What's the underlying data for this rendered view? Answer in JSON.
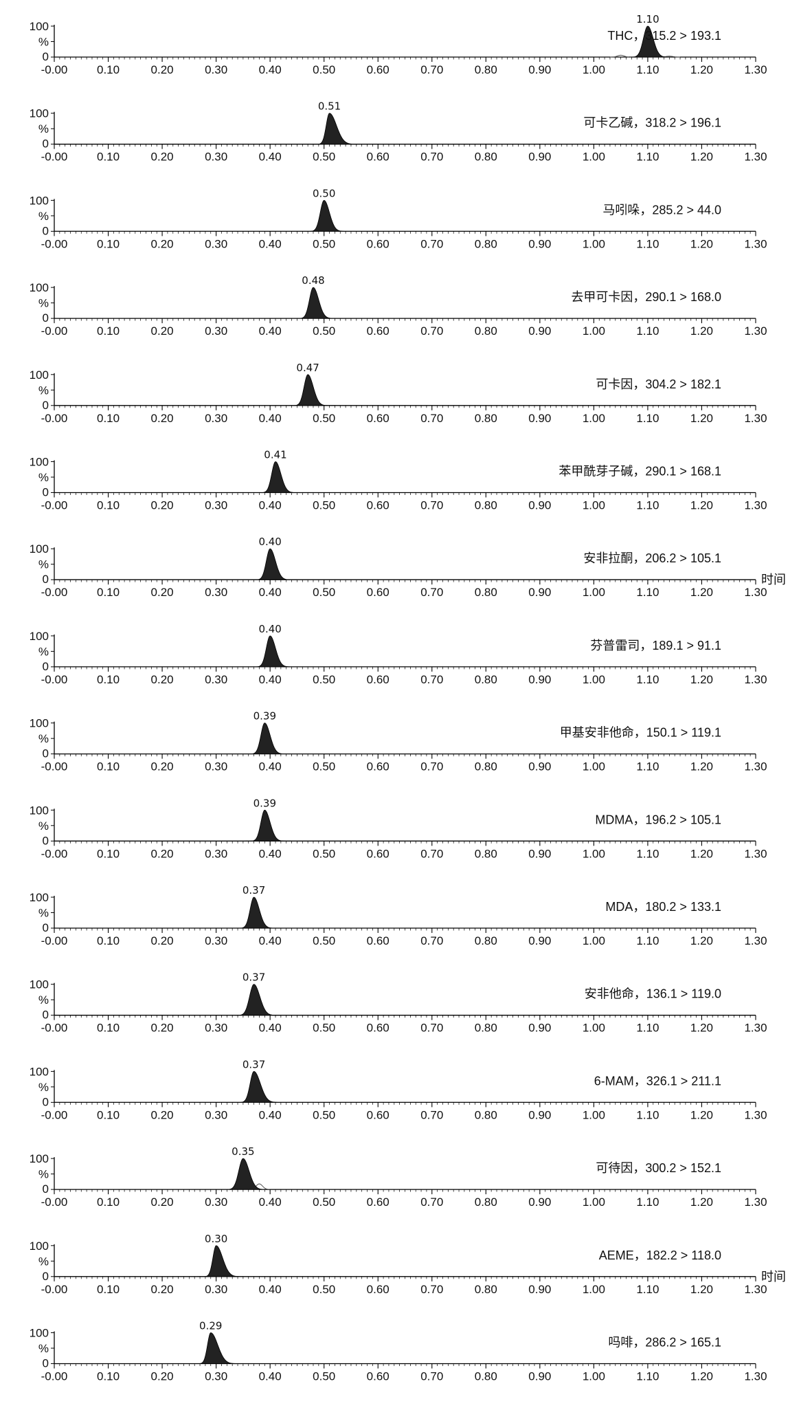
{
  "chart_data": {
    "type": "area",
    "x_range": [
      0,
      1.3
    ],
    "y_range": [
      0,
      100
    ],
    "x_tick_labels": [
      "-0.00",
      "0.10",
      "0.20",
      "0.30",
      "0.40",
      "0.50",
      "0.60",
      "0.70",
      "0.80",
      "0.90",
      "1.00",
      "1.10",
      "1.20",
      "1.30"
    ],
    "y_tick_labels": [
      "100",
      "0"
    ],
    "y_axis_label": "%",
    "x_axis_name": "时间",
    "x_axis_name_shown_on": [
      7,
      15
    ],
    "peak_color": "#222222",
    "series": [
      {
        "name": "THC，315.2 > 193.1",
        "peak_rt": 1.1,
        "peak_label": "1.10",
        "width": 0.008,
        "tail": 0.002,
        "secondary": [
          {
            "rt": 1.05,
            "height": 6
          },
          {
            "rt": 1.14,
            "height": 3
          }
        ]
      },
      {
        "name": "可卡乙碱，318.2 > 196.1",
        "peak_rt": 0.51,
        "peak_label": "0.51",
        "width": 0.006,
        "tail": 0.007,
        "secondary": []
      },
      {
        "name": "马吲哚，285.2 > 44.0",
        "peak_rt": 0.5,
        "peak_label": "0.50",
        "width": 0.007,
        "tail": 0.003,
        "secondary": []
      },
      {
        "name": "去甲可卡因，290.1 > 168.0",
        "peak_rt": 0.48,
        "peak_label": "0.48",
        "width": 0.007,
        "tail": 0.003,
        "secondary": []
      },
      {
        "name": "可卡因，304.2 > 182.1",
        "peak_rt": 0.47,
        "peak_label": "0.47",
        "width": 0.007,
        "tail": 0.003,
        "secondary": []
      },
      {
        "name": "苯甲酰芽子碱，290.1 > 168.1",
        "peak_rt": 0.41,
        "peak_label": "0.41",
        "width": 0.007,
        "tail": 0.003,
        "secondary": []
      },
      {
        "name": "安非拉酮，206.2 > 105.1",
        "peak_rt": 0.4,
        "peak_label": "0.40",
        "width": 0.007,
        "tail": 0.003,
        "secondary": []
      },
      {
        "name": "芬普雷司，189.1 > 91.1",
        "peak_rt": 0.4,
        "peak_label": "0.40",
        "width": 0.007,
        "tail": 0.003,
        "secondary": []
      },
      {
        "name": "甲基安非他命，150.1 > 119.1",
        "peak_rt": 0.39,
        "peak_label": "0.39",
        "width": 0.007,
        "tail": 0.003,
        "secondary": []
      },
      {
        "name": "MDMA，196.2 > 105.1",
        "peak_rt": 0.39,
        "peak_label": "0.39",
        "width": 0.007,
        "tail": 0.003,
        "secondary": []
      },
      {
        "name": "MDA，180.2 > 133.1",
        "peak_rt": 0.37,
        "peak_label": "0.37",
        "width": 0.007,
        "tail": 0.003,
        "secondary": []
      },
      {
        "name": "安非他命，136.1 > 119.0",
        "peak_rt": 0.37,
        "peak_label": "0.37",
        "width": 0.008,
        "tail": 0.003,
        "secondary": []
      },
      {
        "name": "6-MAM，326.1 > 211.1",
        "peak_rt": 0.37,
        "peak_label": "0.37",
        "width": 0.007,
        "tail": 0.005,
        "secondary": []
      },
      {
        "name": "可待因，300.2 > 152.1",
        "peak_rt": 0.35,
        "peak_label": "0.35",
        "width": 0.008,
        "tail": 0.003,
        "secondary": [
          {
            "rt": 0.38,
            "height": 18
          }
        ]
      },
      {
        "name": "AEME，182.2 > 118.0",
        "peak_rt": 0.3,
        "peak_label": "0.30",
        "width": 0.006,
        "tail": 0.006,
        "secondary": []
      },
      {
        "name": "吗啡，286.2 > 165.1",
        "peak_rt": 0.29,
        "peak_label": "0.29",
        "width": 0.006,
        "tail": 0.007,
        "secondary": []
      }
    ]
  }
}
